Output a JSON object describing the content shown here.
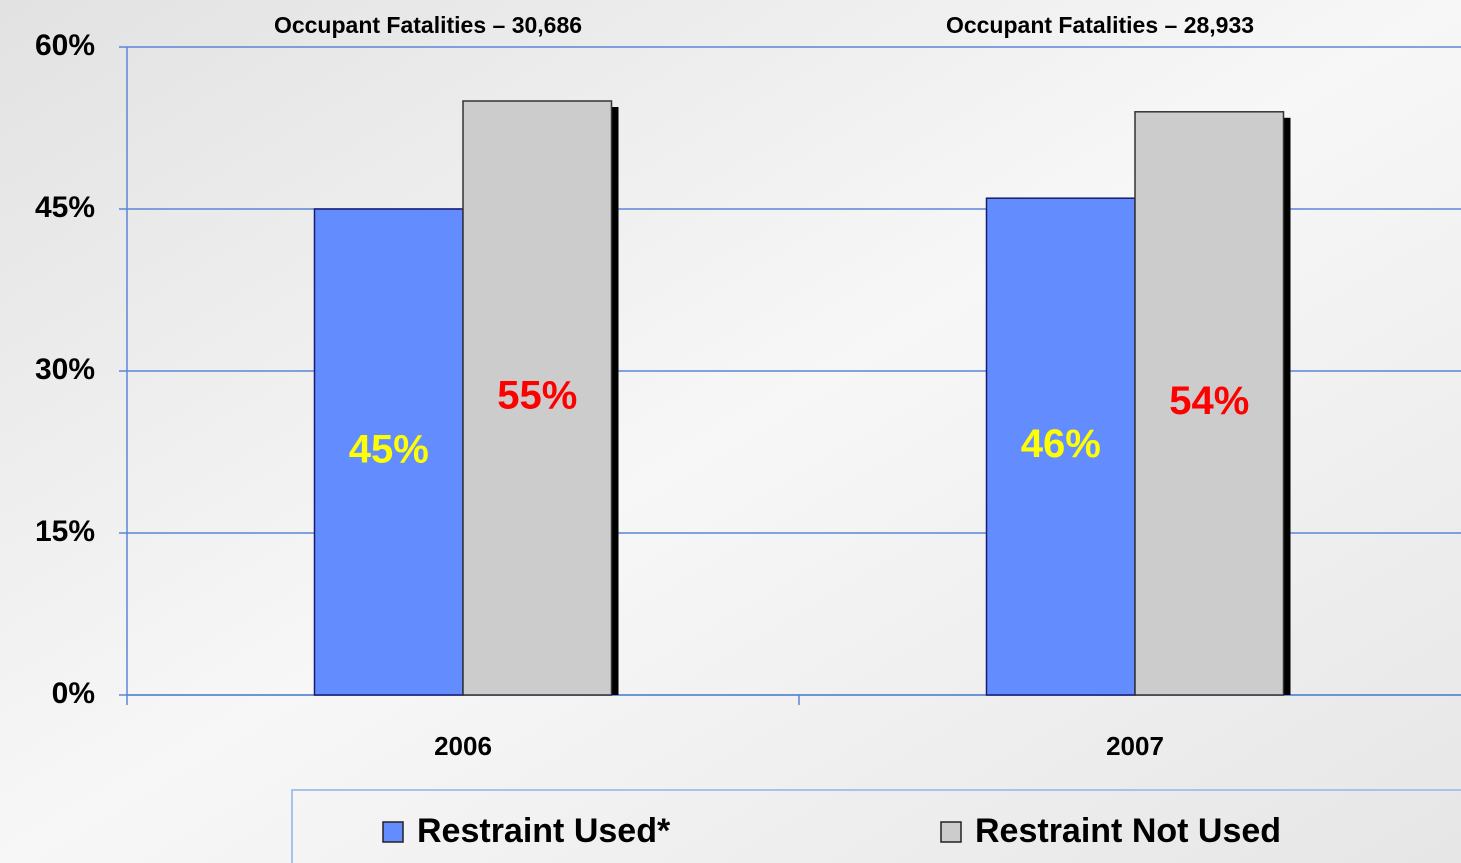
{
  "chart_data": {
    "type": "bar",
    "categories": [
      "2006",
      "2007"
    ],
    "group_labels": [
      "Occupant Fatalities – 30,686",
      "Occupant Fatalities – 28,933"
    ],
    "series": [
      {
        "name": "Restraint Used*",
        "color": "#638cff",
        "label_color": "#ffff00",
        "values": [
          45,
          46
        ],
        "value_labels": [
          "45%",
          "46%"
        ]
      },
      {
        "name": "Restraint Not Used",
        "color": "#cccccc",
        "label_color": "#ff0000",
        "values": [
          55,
          54
        ],
        "value_labels": [
          "55%",
          "54%"
        ]
      }
    ],
    "ylim": [
      0,
      60
    ],
    "yticks": [
      {
        "value": 0,
        "label": "0%"
      },
      {
        "value": 15,
        "label": "15%"
      },
      {
        "value": 30,
        "label": "30%"
      },
      {
        "value": 45,
        "label": "45%"
      },
      {
        "value": 60,
        "label": "60%"
      }
    ],
    "grid": true
  }
}
